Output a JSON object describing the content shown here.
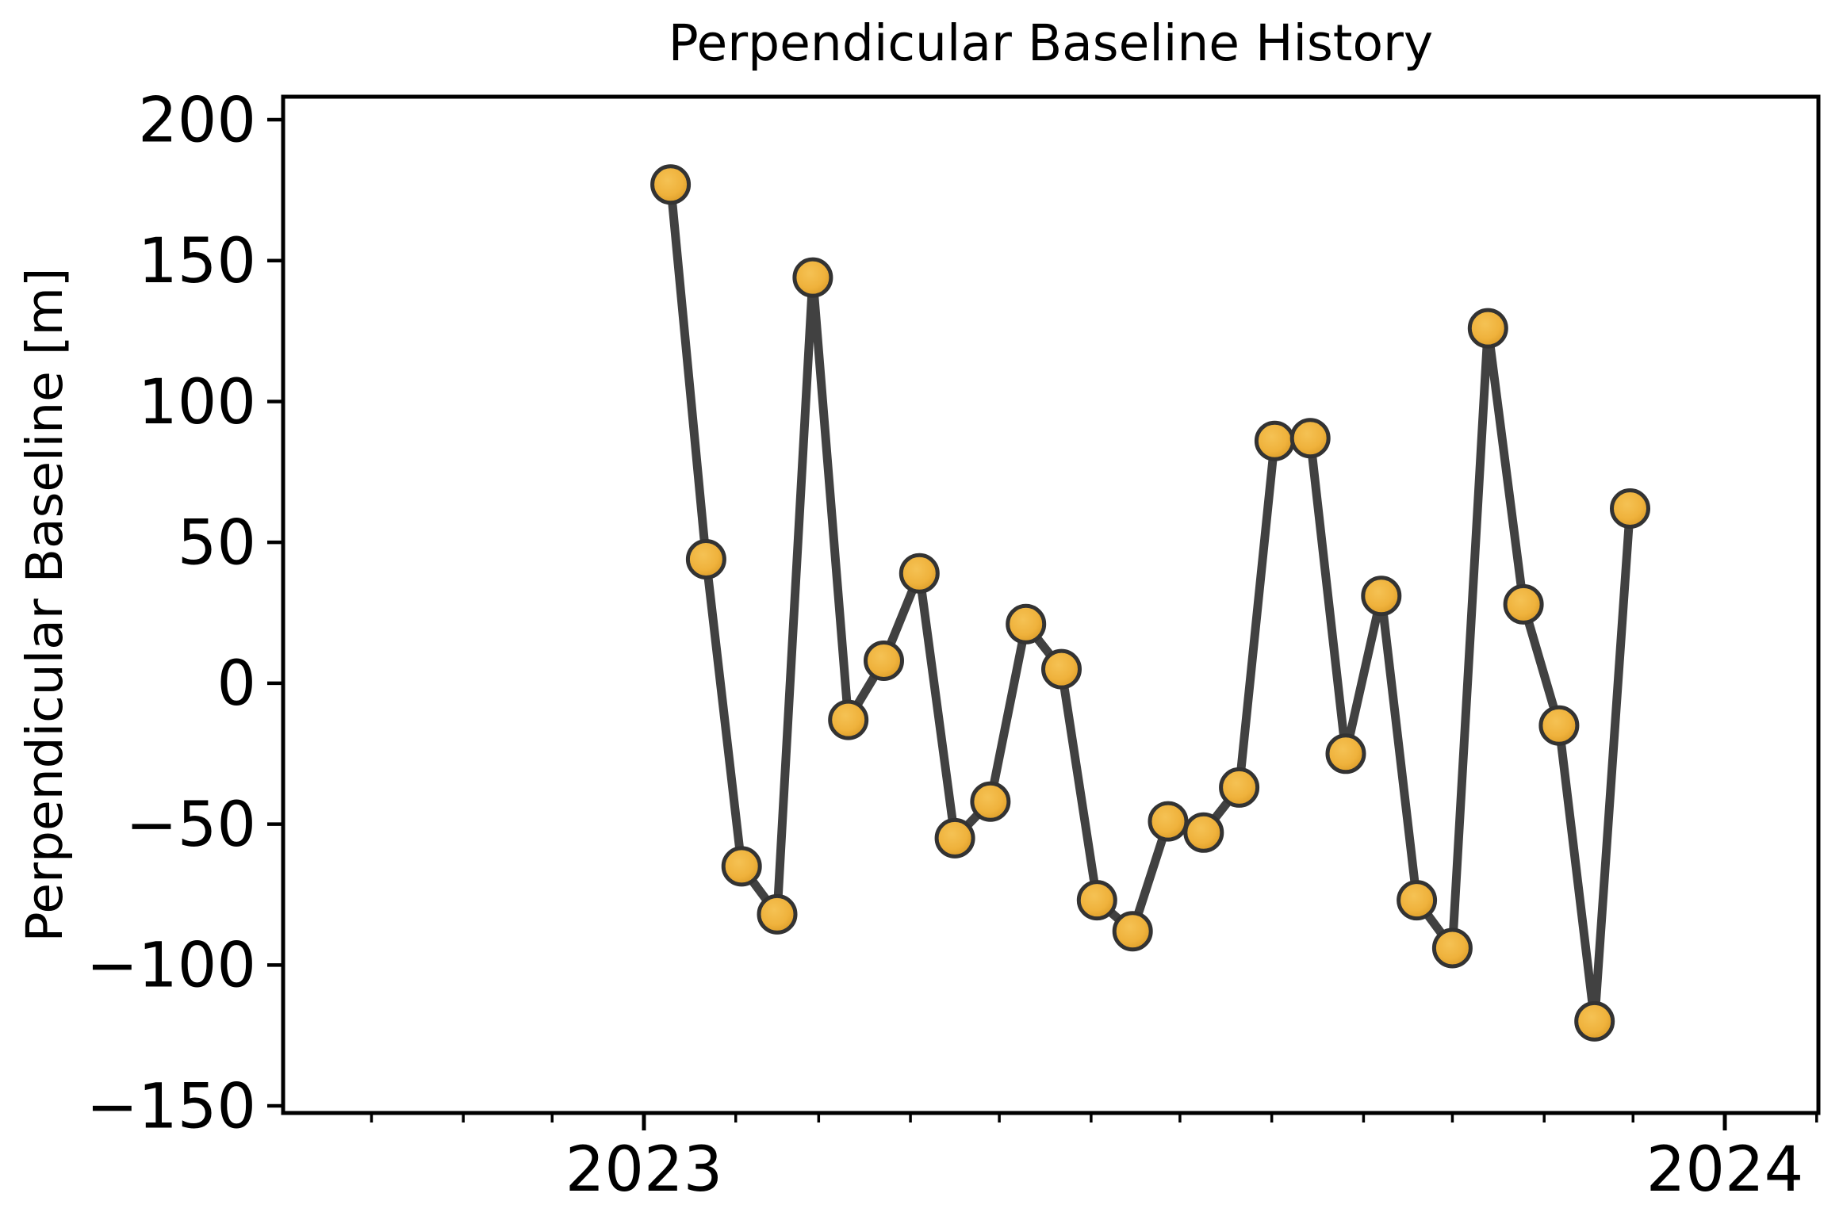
{
  "title": "Perpendicular Baseline History",
  "axes": {
    "y": {
      "label": "Perpendicular Baseline [m]",
      "ticks": [
        {
          "value": 200,
          "label": "200"
        },
        {
          "value": 150,
          "label": "150"
        },
        {
          "value": 100,
          "label": "100"
        },
        {
          "value": 50,
          "label": "50"
        },
        {
          "value": 0,
          "label": "0"
        },
        {
          "value": -50,
          "label": "−50"
        },
        {
          "value": -100,
          "label": "−100"
        },
        {
          "value": -150,
          "label": "−150"
        }
      ]
    },
    "x": {
      "major": [
        {
          "date": "2023-01-01",
          "label": "2023"
        },
        {
          "date": "2024-01-01",
          "label": "2024"
        }
      ]
    }
  },
  "chart_data": {
    "type": "line",
    "title": "Perpendicular Baseline History",
    "xlabel": "",
    "ylabel": "Perpendicular Baseline [m]",
    "ylim": [
      -152,
      208
    ],
    "xlim": [
      "2022-09-03",
      "2024-02-01"
    ],
    "x_tick_labels": [
      "2023",
      "2024"
    ],
    "grid": false,
    "legend": false,
    "line_color": "#414141",
    "marker_color": "#EFB23C",
    "marker_edge_color": "#333333",
    "points": [
      {
        "date": "2023-01-10",
        "value": 177
      },
      {
        "date": "2023-01-22",
        "value": 44
      },
      {
        "date": "2023-02-03",
        "value": -65
      },
      {
        "date": "2023-02-15",
        "value": -82
      },
      {
        "date": "2023-02-27",
        "value": 144
      },
      {
        "date": "2023-03-11",
        "value": -13
      },
      {
        "date": "2023-03-23",
        "value": 8
      },
      {
        "date": "2023-04-04",
        "value": 39
      },
      {
        "date": "2023-04-16",
        "value": -55
      },
      {
        "date": "2023-04-28",
        "value": -42
      },
      {
        "date": "2023-05-10",
        "value": 21
      },
      {
        "date": "2023-05-22",
        "value": 5
      },
      {
        "date": "2023-06-03",
        "value": -77
      },
      {
        "date": "2023-06-15",
        "value": -88
      },
      {
        "date": "2023-06-27",
        "value": -49
      },
      {
        "date": "2023-07-09",
        "value": -53
      },
      {
        "date": "2023-07-21",
        "value": -37
      },
      {
        "date": "2023-08-02",
        "value": 86
      },
      {
        "date": "2023-08-14",
        "value": 87
      },
      {
        "date": "2023-08-26",
        "value": -25
      },
      {
        "date": "2023-09-07",
        "value": 31
      },
      {
        "date": "2023-09-19",
        "value": -77
      },
      {
        "date": "2023-10-01",
        "value": -94
      },
      {
        "date": "2023-10-13",
        "value": 126
      },
      {
        "date": "2023-10-25",
        "value": 28
      },
      {
        "date": "2023-11-06",
        "value": -15
      },
      {
        "date": "2023-11-18",
        "value": -120
      },
      {
        "date": "2023-11-30",
        "value": 62
      }
    ]
  }
}
